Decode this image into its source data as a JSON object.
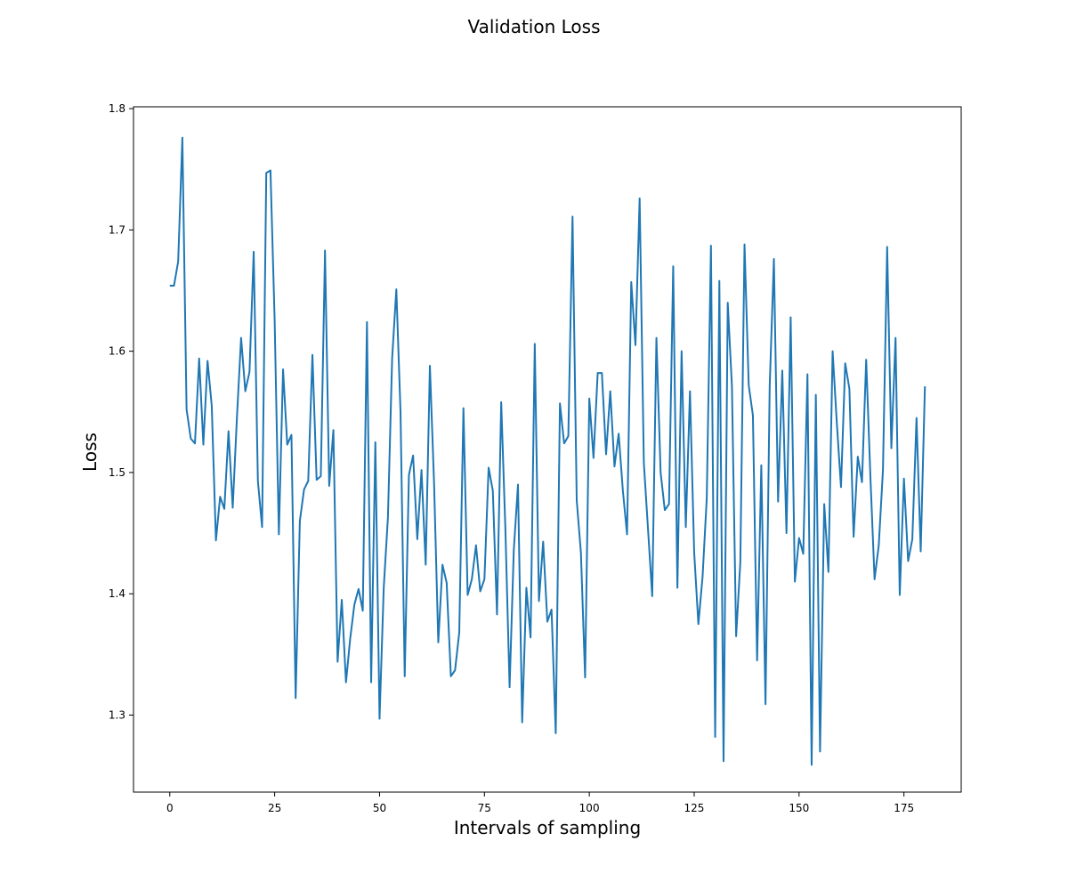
{
  "chart_data": {
    "type": "line",
    "title": "Validation Loss",
    "xlabel": "Intervals of sampling",
    "ylabel": "Loss",
    "xlim": [
      -8.65,
      188.65
    ],
    "ylim": [
      1.2365,
      1.8015
    ],
    "x_ticks": [
      0,
      25,
      50,
      75,
      100,
      125,
      150,
      175
    ],
    "y_ticks": [
      1.3,
      1.4,
      1.5,
      1.6,
      1.7,
      1.8
    ],
    "x_tick_labels": [
      "0",
      "25",
      "50",
      "75",
      "100",
      "125",
      "150",
      "175"
    ],
    "y_tick_labels": [
      "1.3",
      "1.4",
      "1.5",
      "1.6",
      "1.7",
      "1.8"
    ],
    "grid": false,
    "legend": null,
    "series": [
      {
        "color": "#1f77b4",
        "x_start": 0,
        "x_step": 1,
        "values": [
          1.654,
          1.654,
          1.674,
          1.776,
          1.552,
          1.528,
          1.524,
          1.594,
          1.523,
          1.592,
          1.555,
          1.444,
          1.48,
          1.47,
          1.534,
          1.471,
          1.545,
          1.611,
          1.567,
          1.583,
          1.682,
          1.493,
          1.455,
          1.747,
          1.749,
          1.625,
          1.449,
          1.585,
          1.523,
          1.531,
          1.314,
          1.46,
          1.486,
          1.493,
          1.597,
          1.494,
          1.497,
          1.683,
          1.489,
          1.535,
          1.344,
          1.395,
          1.327,
          1.363,
          1.391,
          1.404,
          1.386,
          1.624,
          1.327,
          1.525,
          1.297,
          1.405,
          1.463,
          1.594,
          1.651,
          1.55,
          1.332,
          1.498,
          1.514,
          1.445,
          1.502,
          1.424,
          1.588,
          1.491,
          1.36,
          1.424,
          1.409,
          1.332,
          1.337,
          1.368,
          1.553,
          1.399,
          1.412,
          1.44,
          1.402,
          1.412,
          1.504,
          1.485,
          1.383,
          1.558,
          1.453,
          1.323,
          1.436,
          1.49,
          1.294,
          1.405,
          1.364,
          1.606,
          1.394,
          1.443,
          1.377,
          1.387,
          1.285,
          1.557,
          1.524,
          1.53,
          1.711,
          1.477,
          1.434,
          1.331,
          1.561,
          1.512,
          1.582,
          1.582,
          1.515,
          1.567,
          1.505,
          1.532,
          1.485,
          1.449,
          1.657,
          1.605,
          1.726,
          1.508,
          1.453,
          1.398,
          1.611,
          1.5,
          1.469,
          1.474,
          1.67,
          1.405,
          1.6,
          1.455,
          1.567,
          1.434,
          1.375,
          1.414,
          1.479,
          1.687,
          1.282,
          1.658,
          1.262,
          1.64,
          1.571,
          1.365,
          1.426,
          1.688,
          1.572,
          1.547,
          1.345,
          1.506,
          1.309,
          1.571,
          1.676,
          1.476,
          1.584,
          1.45,
          1.628,
          1.41,
          1.446,
          1.433,
          1.581,
          1.259,
          1.564,
          1.27,
          1.474,
          1.418,
          1.6,
          1.541,
          1.488,
          1.59,
          1.569,
          1.447,
          1.513,
          1.492,
          1.593,
          1.497,
          1.412,
          1.44,
          1.502,
          1.686,
          1.52,
          1.611,
          1.399,
          1.495,
          1.427,
          1.445,
          1.545,
          1.435,
          1.571
        ]
      }
    ]
  }
}
